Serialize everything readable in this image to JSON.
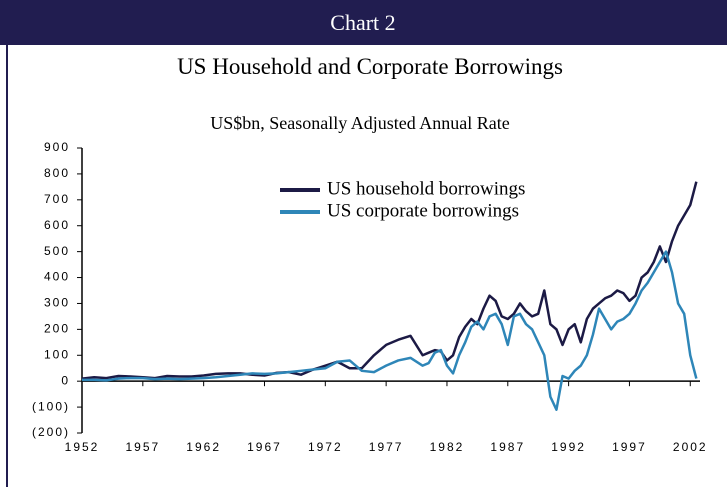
{
  "chart_data": {
    "type": "line",
    "header": "Chart 2",
    "title": "US Household and Corporate Borrowings",
    "subtitle": "US$bn, Seasonally Adjusted Annual Rate",
    "x": [
      1952,
      1953,
      1954,
      1955,
      1956,
      1957,
      1958,
      1959,
      1960,
      1961,
      1962,
      1963,
      1964,
      1965,
      1966,
      1967,
      1968,
      1969,
      1970,
      1971,
      1972,
      1973,
      1974,
      1975,
      1976,
      1977,
      1978,
      1979,
      1980,
      1980.5,
      1981,
      1981.5,
      1982,
      1982.5,
      1983,
      1983.5,
      1984,
      1984.5,
      1985,
      1985.5,
      1986,
      1986.5,
      1987,
      1987.5,
      1988,
      1988.5,
      1989,
      1989.5,
      1990,
      1990.5,
      1991,
      1991.5,
      1992,
      1992.5,
      1993,
      1993.5,
      1994,
      1994.5,
      1995,
      1995.5,
      1996,
      1996.5,
      1997,
      1997.5,
      1998,
      1998.5,
      1999,
      1999.5,
      2000,
      2000.5,
      2001,
      2001.5,
      2002,
      2002.5
    ],
    "series": [
      {
        "name": "US household borrowings",
        "color": "#1c1a45",
        "values": [
          10,
          15,
          12,
          20,
          18,
          15,
          12,
          20,
          18,
          18,
          22,
          28,
          30,
          30,
          25,
          22,
          32,
          35,
          25,
          45,
          60,
          75,
          50,
          50,
          100,
          140,
          160,
          175,
          100,
          110,
          120,
          115,
          80,
          100,
          170,
          210,
          240,
          220,
          280,
          330,
          310,
          250,
          240,
          260,
          300,
          270,
          250,
          260,
          350,
          220,
          200,
          140,
          200,
          220,
          150,
          240,
          280,
          300,
          320,
          330,
          350,
          340,
          310,
          330,
          400,
          420,
          460,
          520,
          460,
          540,
          600,
          640,
          680,
          770
        ]
      },
      {
        "name": "US corporate borrowings",
        "color": "#2e86b8",
        "values": [
          5,
          5,
          3,
          10,
          12,
          12,
          8,
          10,
          8,
          10,
          12,
          15,
          20,
          25,
          30,
          28,
          30,
          35,
          40,
          45,
          50,
          75,
          80,
          40,
          35,
          60,
          80,
          90,
          60,
          70,
          110,
          120,
          60,
          30,
          100,
          150,
          210,
          230,
          200,
          250,
          260,
          220,
          140,
          250,
          260,
          220,
          200,
          150,
          100,
          -60,
          -110,
          20,
          10,
          40,
          60,
          100,
          180,
          280,
          240,
          200,
          230,
          240,
          260,
          300,
          350,
          380,
          420,
          460,
          500,
          420,
          300,
          260,
          100,
          10
        ]
      }
    ],
    "xlim": [
      1952,
      2002.8
    ],
    "xticks": [
      1952,
      1957,
      1962,
      1967,
      1972,
      1977,
      1982,
      1987,
      1992,
      1997,
      2002
    ],
    "ylim": [
      -200,
      900
    ],
    "yticks": [
      {
        "value": -200,
        "label": "(200)"
      },
      {
        "value": -100,
        "label": "(100)"
      },
      0,
      100,
      200,
      300,
      400,
      500,
      600,
      700,
      800,
      900
    ]
  }
}
